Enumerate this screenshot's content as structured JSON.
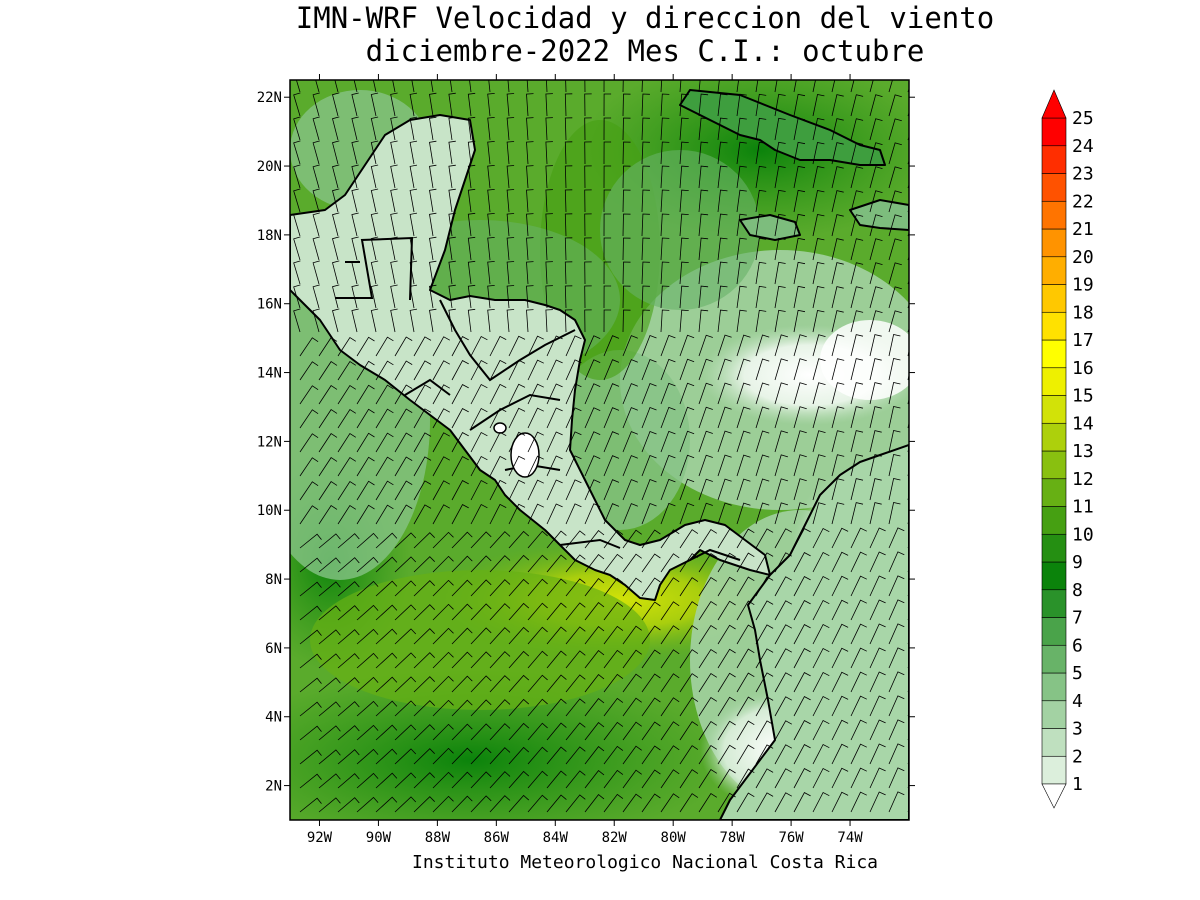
{
  "title": {
    "line1": "IMN-WRF Velocidad y direccion del viento",
    "line2": "diciembre-2022 Mes C.I.: octubre"
  },
  "credit": "Instituto Meteorologico Nacional Costa Rica",
  "map": {
    "lon_range": [
      -93.0,
      -72.0
    ],
    "lat_range": [
      1.0,
      22.5
    ],
    "lon_ticks": [
      {
        "value": -92,
        "label": "92W"
      },
      {
        "value": -90,
        "label": "90W"
      },
      {
        "value": -88,
        "label": "88W"
      },
      {
        "value": -86,
        "label": "86W"
      },
      {
        "value": -84,
        "label": "84W"
      },
      {
        "value": -82,
        "label": "82W"
      },
      {
        "value": -80,
        "label": "80W"
      },
      {
        "value": -78,
        "label": "78W"
      },
      {
        "value": -76,
        "label": "76W"
      },
      {
        "value": -74,
        "label": "74W"
      }
    ],
    "lat_ticks": [
      {
        "value": 2,
        "label": "2N"
      },
      {
        "value": 4,
        "label": "4N"
      },
      {
        "value": 6,
        "label": "6N"
      },
      {
        "value": 8,
        "label": "8N"
      },
      {
        "value": 10,
        "label": "10N"
      },
      {
        "value": 12,
        "label": "12N"
      },
      {
        "value": 14,
        "label": "14N"
      },
      {
        "value": 16,
        "label": "16N"
      },
      {
        "value": 18,
        "label": "18N"
      },
      {
        "value": 20,
        "label": "20N"
      },
      {
        "value": 22,
        "label": "22N"
      }
    ]
  },
  "colorbar": {
    "levels": [
      {
        "value": 1,
        "label": "1",
        "color": "#ffffff"
      },
      {
        "value": 2,
        "label": "2",
        "color": "#dcefdc"
      },
      {
        "value": 3,
        "label": "3",
        "color": "#bfe0bf"
      },
      {
        "value": 4,
        "label": "4",
        "color": "#a3d2a3"
      },
      {
        "value": 5,
        "label": "5",
        "color": "#86c386"
      },
      {
        "value": 6,
        "label": "6",
        "color": "#68b368"
      },
      {
        "value": 7,
        "label": "7",
        "color": "#4aa34a"
      },
      {
        "value": 8,
        "label": "8",
        "color": "#2a922a"
      },
      {
        "value": 9,
        "label": "9",
        "color": "#0b830b"
      },
      {
        "value": 10,
        "label": "10",
        "color": "#258f12"
      },
      {
        "value": 11,
        "label": "11",
        "color": "#46a012"
      },
      {
        "value": 12,
        "label": "12",
        "color": "#67b014"
      },
      {
        "value": 13,
        "label": "13",
        "color": "#89c010"
      },
      {
        "value": 14,
        "label": "14",
        "color": "#add00c"
      },
      {
        "value": 15,
        "label": "15",
        "color": "#d2e208"
      },
      {
        "value": 16,
        "label": "16",
        "color": "#eef000"
      },
      {
        "value": 17,
        "label": "17",
        "color": "#ffff00"
      },
      {
        "value": 18,
        "label": "18",
        "color": "#ffe100"
      },
      {
        "value": 19,
        "label": "19",
        "color": "#ffc800"
      },
      {
        "value": 20,
        "label": "20",
        "color": "#ffae00"
      },
      {
        "value": 21,
        "label": "21",
        "color": "#ff9300"
      },
      {
        "value": 22,
        "label": "22",
        "color": "#ff7400"
      },
      {
        "value": 23,
        "label": "23",
        "color": "#ff5200"
      },
      {
        "value": 24,
        "label": "24",
        "color": "#ff2e00"
      },
      {
        "value": 25,
        "label": "25",
        "color": "#ff0000"
      }
    ]
  },
  "colors": {
    "land_outline": "#000000",
    "wind_barb": "#000000"
  }
}
